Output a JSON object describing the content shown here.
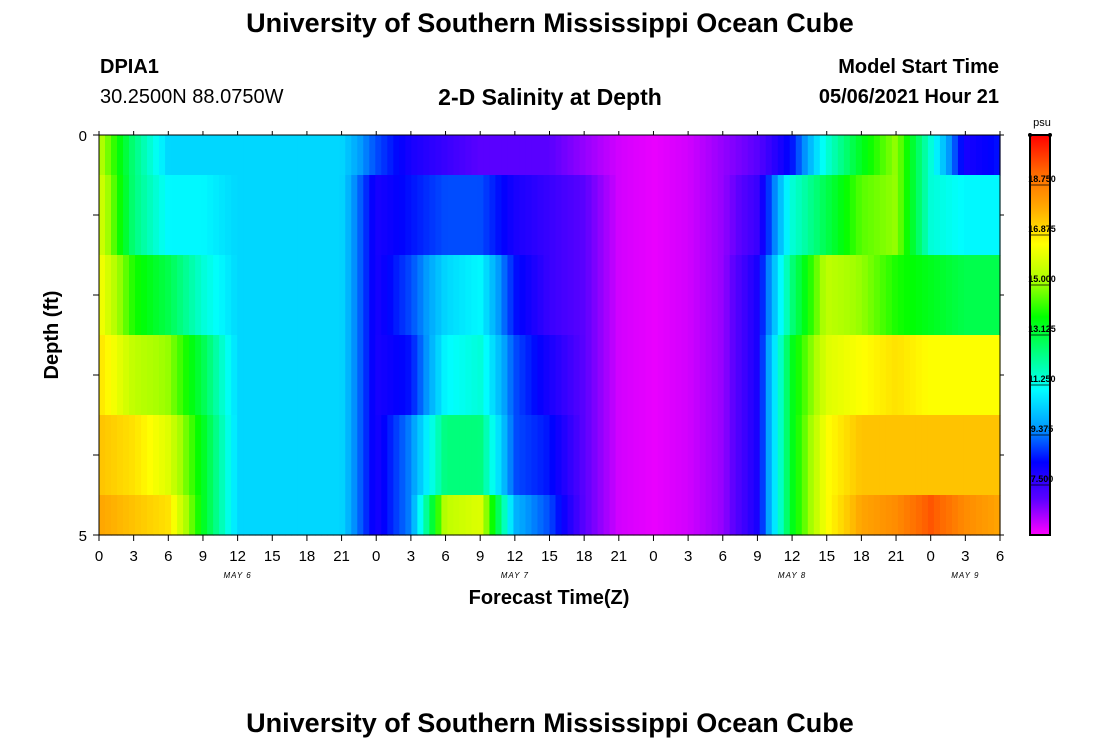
{
  "header": {
    "title": "University of Southern Mississippi Ocean Cube",
    "station_id": "DPIA1",
    "station_coords": "30.2500N  88.0750W",
    "chart_title": "2-D Salinity at Depth",
    "model_start_label": "Model Start Time",
    "model_start_value": "05/06/2021 Hour 21"
  },
  "footer": {
    "title": "University of Southern Mississippi Ocean Cube"
  },
  "chart_data": {
    "type": "heatmap",
    "title": "2-D Salinity at Depth",
    "xlabel": "Forecast Time(Z)",
    "ylabel": "Depth (ft)",
    "ylim": [
      0,
      5
    ],
    "y_tick_labels": [
      "0",
      "5"
    ],
    "x_tick_labels": [
      "0",
      "3",
      "6",
      "9",
      "12",
      "15",
      "18",
      "21",
      "0",
      "3",
      "6",
      "9",
      "12",
      "15",
      "18",
      "21",
      "0",
      "3",
      "6",
      "9",
      "12",
      "15",
      "18",
      "21",
      "0",
      "3",
      "6"
    ],
    "day_labels": [
      {
        "label": "MAY 6",
        "at_tick": 4
      },
      {
        "label": "MAY 7",
        "at_tick": 12
      },
      {
        "label": "MAY 8",
        "at_tick": 20
      },
      {
        "label": "MAY 9",
        "at_tick": 25
      }
    ],
    "hours_total": 78,
    "colorbar": {
      "unit": "psu",
      "min": 5.625,
      "max": 20.625,
      "ticks": [
        "18.750",
        "16.875",
        "15.000",
        "13.125",
        "11.250",
        "9.375",
        "7.500"
      ],
      "colors": [
        "#ff00ff",
        "#5a00ff",
        "#0000ff",
        "#00a0ff",
        "#00ffff",
        "#00ff80",
        "#00ff00",
        "#aaff00",
        "#ffff00",
        "#ffaa00",
        "#ff6600",
        "#ff0000"
      ]
    },
    "depth_layers": [
      "0-0.5 ft",
      "0.5-1.5 ft",
      "1.5-2.5 ft",
      "2.5-3.5 ft",
      "3.5-4.5 ft",
      "4.5-5 ft"
    ],
    "x_hours": [
      0,
      3,
      6,
      9,
      12,
      15,
      18,
      21,
      24,
      27,
      30,
      33,
      36,
      39,
      42,
      45,
      48,
      51,
      54,
      57,
      60,
      63,
      66,
      69,
      72,
      75,
      78
    ],
    "values": [
      [
        15.5,
        12.5,
        10.5,
        10.5,
        10.5,
        10.5,
        10.5,
        10.5,
        9.0,
        8.0,
        7.5,
        7.0,
        7.0,
        7.0,
        6.5,
        6.0,
        5.8,
        6.0,
        6.5,
        7.0,
        8.5,
        11.5,
        13.5,
        15.0,
        11.5,
        8.0,
        8.5
      ],
      [
        16.0,
        12.5,
        11.0,
        11.0,
        10.5,
        10.5,
        10.5,
        10.5,
        8.0,
        8.5,
        9.0,
        9.0,
        8.0,
        7.5,
        7.0,
        6.0,
        5.8,
        6.0,
        6.5,
        7.5,
        11.5,
        13.0,
        14.5,
        15.0,
        11.5,
        11.0,
        11.0
      ],
      [
        16.5,
        14.0,
        13.0,
        11.5,
        10.5,
        10.5,
        10.5,
        10.5,
        8.0,
        9.0,
        10.5,
        11.0,
        8.5,
        7.5,
        7.0,
        6.0,
        5.8,
        6.0,
        6.5,
        8.0,
        12.5,
        15.5,
        15.0,
        14.0,
        13.5,
        13.0,
        13.0
      ],
      [
        17.0,
        15.5,
        15.0,
        13.0,
        10.5,
        10.5,
        10.5,
        10.5,
        8.0,
        8.5,
        11.0,
        11.5,
        9.0,
        8.0,
        7.0,
        6.0,
        5.8,
        6.0,
        6.5,
        8.0,
        13.5,
        16.0,
        16.5,
        17.0,
        16.5,
        16.5,
        16.5
      ],
      [
        17.5,
        17.0,
        16.0,
        13.5,
        10.5,
        10.5,
        10.5,
        10.5,
        8.0,
        9.5,
        12.5,
        12.5,
        9.0,
        8.5,
        7.0,
        6.0,
        5.8,
        6.0,
        6.5,
        8.0,
        13.5,
        16.5,
        17.5,
        17.5,
        17.5,
        17.5,
        17.5
      ],
      [
        18.0,
        17.5,
        17.0,
        13.5,
        10.5,
        10.5,
        10.5,
        10.5,
        8.0,
        9.5,
        15.5,
        16.0,
        10.0,
        9.0,
        7.0,
        6.0,
        5.8,
        6.0,
        6.5,
        8.0,
        13.5,
        16.5,
        18.0,
        18.5,
        19.5,
        18.5,
        18.0
      ]
    ]
  }
}
